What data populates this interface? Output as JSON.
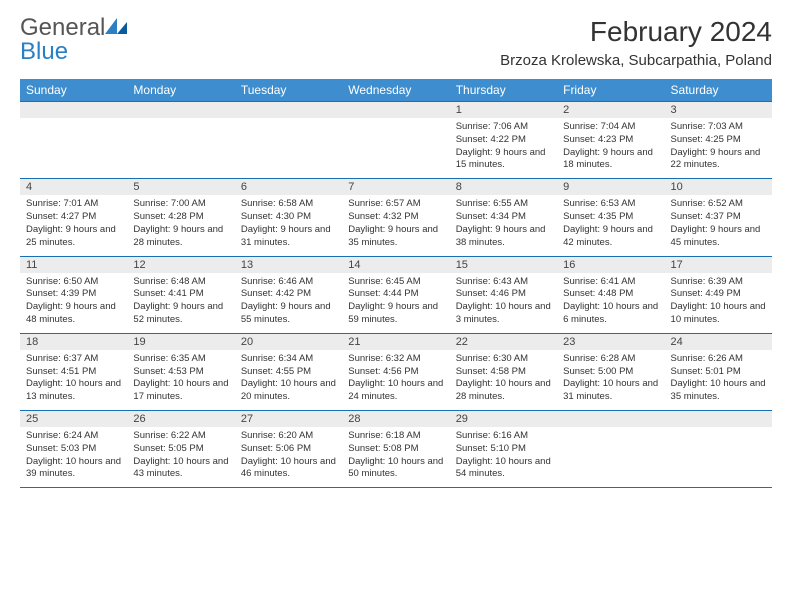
{
  "brand": {
    "word1": "General",
    "word2": "Blue"
  },
  "title": "February 2024",
  "location": "Brzoza Krolewska, Subcarpathia, Poland",
  "colors": {
    "header_blue": "#3e8ecf",
    "rule": "#1a6fb3",
    "row_alt": "#ececec",
    "brand_blue": "#2b7fc3",
    "background": "#ffffff"
  },
  "dow": [
    "Sunday",
    "Monday",
    "Tuesday",
    "Wednesday",
    "Thursday",
    "Friday",
    "Saturday"
  ],
  "weeks": [
    [
      {
        "empty": true
      },
      {
        "empty": true
      },
      {
        "empty": true
      },
      {
        "empty": true
      },
      {
        "n": "1",
        "sr": "7:06 AM",
        "ss": "4:22 PM",
        "dl": "9 hours and 15 minutes."
      },
      {
        "n": "2",
        "sr": "7:04 AM",
        "ss": "4:23 PM",
        "dl": "9 hours and 18 minutes."
      },
      {
        "n": "3",
        "sr": "7:03 AM",
        "ss": "4:25 PM",
        "dl": "9 hours and 22 minutes."
      }
    ],
    [
      {
        "n": "4",
        "sr": "7:01 AM",
        "ss": "4:27 PM",
        "dl": "9 hours and 25 minutes."
      },
      {
        "n": "5",
        "sr": "7:00 AM",
        "ss": "4:28 PM",
        "dl": "9 hours and 28 minutes."
      },
      {
        "n": "6",
        "sr": "6:58 AM",
        "ss": "4:30 PM",
        "dl": "9 hours and 31 minutes."
      },
      {
        "n": "7",
        "sr": "6:57 AM",
        "ss": "4:32 PM",
        "dl": "9 hours and 35 minutes."
      },
      {
        "n": "8",
        "sr": "6:55 AM",
        "ss": "4:34 PM",
        "dl": "9 hours and 38 minutes."
      },
      {
        "n": "9",
        "sr": "6:53 AM",
        "ss": "4:35 PM",
        "dl": "9 hours and 42 minutes."
      },
      {
        "n": "10",
        "sr": "6:52 AM",
        "ss": "4:37 PM",
        "dl": "9 hours and 45 minutes."
      }
    ],
    [
      {
        "n": "11",
        "sr": "6:50 AM",
        "ss": "4:39 PM",
        "dl": "9 hours and 48 minutes."
      },
      {
        "n": "12",
        "sr": "6:48 AM",
        "ss": "4:41 PM",
        "dl": "9 hours and 52 minutes."
      },
      {
        "n": "13",
        "sr": "6:46 AM",
        "ss": "4:42 PM",
        "dl": "9 hours and 55 minutes."
      },
      {
        "n": "14",
        "sr": "6:45 AM",
        "ss": "4:44 PM",
        "dl": "9 hours and 59 minutes."
      },
      {
        "n": "15",
        "sr": "6:43 AM",
        "ss": "4:46 PM",
        "dl": "10 hours and 3 minutes."
      },
      {
        "n": "16",
        "sr": "6:41 AM",
        "ss": "4:48 PM",
        "dl": "10 hours and 6 minutes."
      },
      {
        "n": "17",
        "sr": "6:39 AM",
        "ss": "4:49 PM",
        "dl": "10 hours and 10 minutes."
      }
    ],
    [
      {
        "n": "18",
        "sr": "6:37 AM",
        "ss": "4:51 PM",
        "dl": "10 hours and 13 minutes."
      },
      {
        "n": "19",
        "sr": "6:35 AM",
        "ss": "4:53 PM",
        "dl": "10 hours and 17 minutes."
      },
      {
        "n": "20",
        "sr": "6:34 AM",
        "ss": "4:55 PM",
        "dl": "10 hours and 20 minutes."
      },
      {
        "n": "21",
        "sr": "6:32 AM",
        "ss": "4:56 PM",
        "dl": "10 hours and 24 minutes."
      },
      {
        "n": "22",
        "sr": "6:30 AM",
        "ss": "4:58 PM",
        "dl": "10 hours and 28 minutes."
      },
      {
        "n": "23",
        "sr": "6:28 AM",
        "ss": "5:00 PM",
        "dl": "10 hours and 31 minutes."
      },
      {
        "n": "24",
        "sr": "6:26 AM",
        "ss": "5:01 PM",
        "dl": "10 hours and 35 minutes."
      }
    ],
    [
      {
        "n": "25",
        "sr": "6:24 AM",
        "ss": "5:03 PM",
        "dl": "10 hours and 39 minutes."
      },
      {
        "n": "26",
        "sr": "6:22 AM",
        "ss": "5:05 PM",
        "dl": "10 hours and 43 minutes."
      },
      {
        "n": "27",
        "sr": "6:20 AM",
        "ss": "5:06 PM",
        "dl": "10 hours and 46 minutes."
      },
      {
        "n": "28",
        "sr": "6:18 AM",
        "ss": "5:08 PM",
        "dl": "10 hours and 50 minutes."
      },
      {
        "n": "29",
        "sr": "6:16 AM",
        "ss": "5:10 PM",
        "dl": "10 hours and 54 minutes."
      },
      {
        "empty": true
      },
      {
        "empty": true
      }
    ]
  ],
  "labels": {
    "sunrise": "Sunrise:",
    "sunset": "Sunset:",
    "daylight": "Daylight:"
  }
}
